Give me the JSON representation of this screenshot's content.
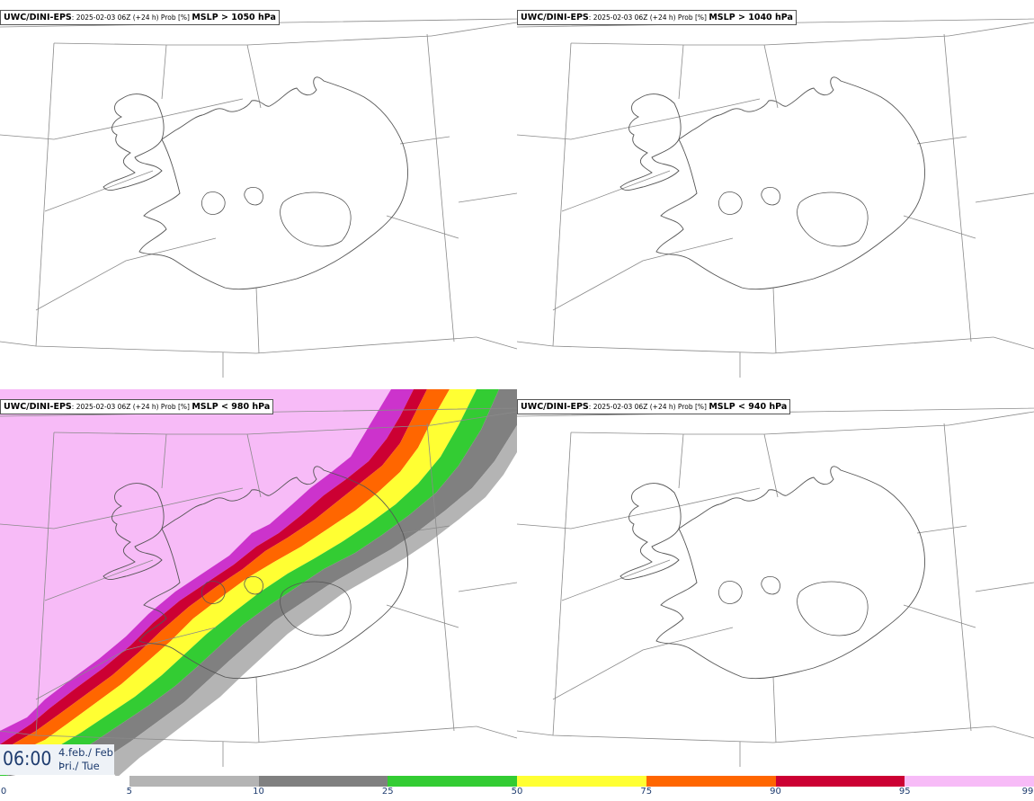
{
  "panels": [
    {
      "model": "UWC/DINI-EPS",
      "meta": ": 2025-02-03 06Z (+24 h) Prob [%] ",
      "threshold": "MSLP > 1050 hPa"
    },
    {
      "model": "UWC/DINI-EPS",
      "meta": ": 2025-02-03 06Z (+24 h) Prob [%] ",
      "threshold": "MSLP > 1040 hPa"
    },
    {
      "model": "UWC/DINI-EPS",
      "meta": ": 2025-02-03 06Z (+24 h) Prob [%] ",
      "threshold": "MSLP < 980 hPa"
    },
    {
      "model": "UWC/DINI-EPS",
      "meta": ": 2025-02-03 06Z (+24 h) Prob [%] ",
      "threshold": "MSLP < 940 hPa"
    }
  ],
  "valid_time": {
    "time": "06:00",
    "date": "4.feb./ Feb",
    "weekday": "Þri./ Tue"
  },
  "legend": {
    "ticks": [
      "0",
      "5",
      "10",
      "25",
      "50",
      "75",
      "90",
      "95",
      "99"
    ],
    "colors": [
      "#ffffff",
      "#b4b4b4",
      "#808080",
      "#33cc33",
      "#ffff33",
      "#ff6600",
      "#cc0033",
      "#cc33cc",
      "#f7bbf7"
    ]
  }
}
